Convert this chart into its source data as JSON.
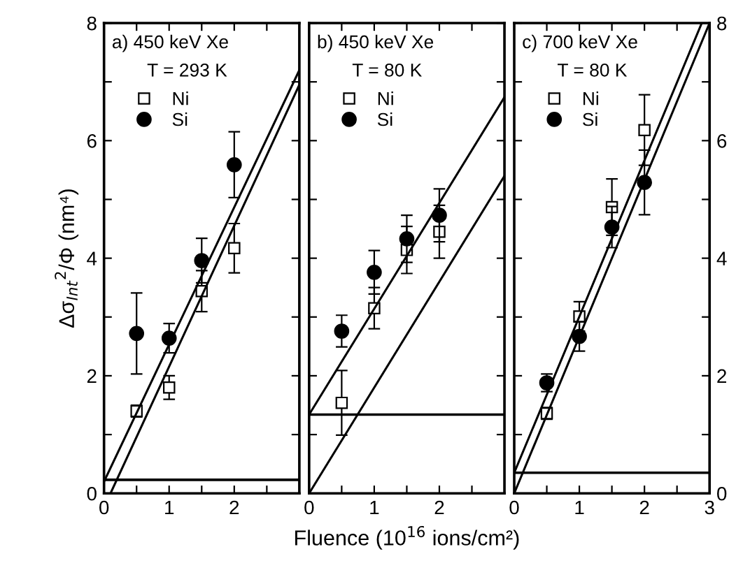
{
  "chart_data": [
    {
      "type": "scatter",
      "annotations": [
        "a) 450 keV Xe",
        "T = 293 K"
      ],
      "ylabel": "Δσ$_{Int}$$^{2}$/Φ (nm⁴)",
      "legend": "top left",
      "xlim": [
        0,
        3
      ],
      "ylim": [
        0,
        8
      ],
      "xticks": [
        0,
        {
          "value": 0.5,
          "label": null
        },
        1,
        {
          "value": 1.5,
          "label": null
        },
        2,
        {
          "value": 2.5,
          "label": null
        }
      ],
      "yticks": [
        0,
        {
          "value": 1,
          "label": null
        },
        2,
        {
          "value": 3,
          "label": null
        },
        4,
        {
          "value": 5,
          "label": null
        },
        6,
        {
          "value": 7,
          "label": null
        },
        8
      ],
      "ref_lines": [
        {
          "axis": "y",
          "value": 0.23,
          "color": "#000000"
        }
      ],
      "series": [
        {
          "name": "Ni",
          "marker": "square",
          "color": "#000000",
          "x": [
            0.5,
            1,
            1.5,
            2
          ],
          "values": [
            1.4,
            1.8,
            3.44,
            4.17
          ],
          "errors": [
            0.1,
            0.2,
            0.35,
            0.42
          ]
        },
        {
          "name": "Si",
          "marker": "circle",
          "color": "#000000",
          "x": [
            0.5,
            1,
            1.5,
            2
          ],
          "values": [
            2.72,
            2.64,
            3.96,
            5.59
          ],
          "errors": [
            0.69,
            0.25,
            0.38,
            0.56
          ]
        },
        {
          "type": "line",
          "color": "#000000",
          "x": [
            0,
            3
          ],
          "values": [
            0.2,
            7.2
          ]
        },
        {
          "type": "line",
          "color": "#000000",
          "x": [
            0.1,
            3
          ],
          "values": [
            0,
            6.95
          ]
        }
      ]
    },
    {
      "type": "scatter",
      "annotations": [
        "b) 450 keV Xe",
        "T = 80 K"
      ],
      "xlabel": "Fluence (10$^{16}$ ions/cm²)",
      "legend": "top left",
      "tick_labels": "x",
      "xlim": [
        0,
        3
      ],
      "ylim": [
        0,
        8
      ],
      "xticks": [
        0,
        {
          "value": 0.5,
          "label": null
        },
        1,
        {
          "value": 1.5,
          "label": null
        },
        2,
        {
          "value": 2.5,
          "label": null
        }
      ],
      "yticks": [
        {
          "value": 0,
          "label": null
        },
        {
          "value": 1,
          "label": null
        },
        {
          "value": 2,
          "label": null
        },
        {
          "value": 3,
          "label": null
        },
        {
          "value": 4,
          "label": null
        },
        {
          "value": 5,
          "label": null
        },
        {
          "value": 6,
          "label": null
        },
        {
          "value": 7,
          "label": null
        },
        {
          "value": 8,
          "label": null
        }
      ],
      "ref_lines": [
        {
          "axis": "y",
          "value": 1.34,
          "color": "#000000"
        }
      ],
      "series": [
        {
          "name": "Ni",
          "marker": "square",
          "color": "#000000",
          "x": [
            0.5,
            1,
            1.5,
            2
          ],
          "values": [
            1.54,
            3.15,
            4.14,
            4.45
          ],
          "errors": [
            0.55,
            0.35,
            0.4,
            0.45
          ]
        },
        {
          "name": "Si",
          "marker": "circle",
          "color": "#000000",
          "x": [
            0.5,
            1,
            1.5,
            2
          ],
          "values": [
            2.76,
            3.76,
            4.33,
            4.73
          ],
          "errors": [
            0.27,
            0.37,
            0.4,
            0.45
          ]
        },
        {
          "type": "line",
          "color": "#000000",
          "x": [
            0,
            3
          ],
          "values": [
            1.34,
            6.74
          ]
        },
        {
          "type": "line",
          "color": "#000000",
          "x": [
            0,
            3
          ],
          "values": [
            0,
            5.4
          ]
        }
      ]
    },
    {
      "type": "scatter",
      "annotations": [
        "c) 700 keV Xe",
        "T = 80 K"
      ],
      "legend": "top left",
      "xlim": [
        0,
        3
      ],
      "ylim": [
        0,
        8
      ],
      "xticks": [
        0,
        {
          "value": 0.5,
          "label": null
        },
        1,
        {
          "value": 1.5,
          "label": null
        },
        2,
        {
          "value": 2.5,
          "label": null
        },
        3
      ],
      "yticks": [
        0,
        {
          "value": 1,
          "label": null
        },
        2,
        {
          "value": 3,
          "label": null
        },
        4,
        {
          "value": 5,
          "label": null
        },
        6,
        {
          "value": 7,
          "label": null
        },
        8
      ],
      "ref_lines": [
        {
          "axis": "y",
          "value": 0.35,
          "color": "#000000"
        }
      ],
      "series": [
        {
          "name": "Ni",
          "marker": "square",
          "color": "#000000",
          "x": [
            0.5,
            1,
            1.5,
            2
          ],
          "values": [
            1.36,
            3.01,
            4.87,
            6.18
          ],
          "errors": [
            0.1,
            0.25,
            0.48,
            0.6
          ]
        },
        {
          "name": "Si",
          "marker": "circle",
          "color": "#000000",
          "x": [
            0.5,
            1,
            1.5,
            2
          ],
          "values": [
            1.88,
            2.67,
            4.53,
            5.29
          ],
          "errors": [
            0.15,
            0.25,
            0.35,
            0.55
          ]
        },
        {
          "type": "line",
          "color": "#000000",
          "x": [
            0,
            2.88
          ],
          "values": [
            0.35,
            8
          ]
        },
        {
          "type": "line",
          "color": "#000000",
          "x": [
            0,
            3
          ],
          "values": [
            0,
            8
          ]
        }
      ]
    }
  ]
}
